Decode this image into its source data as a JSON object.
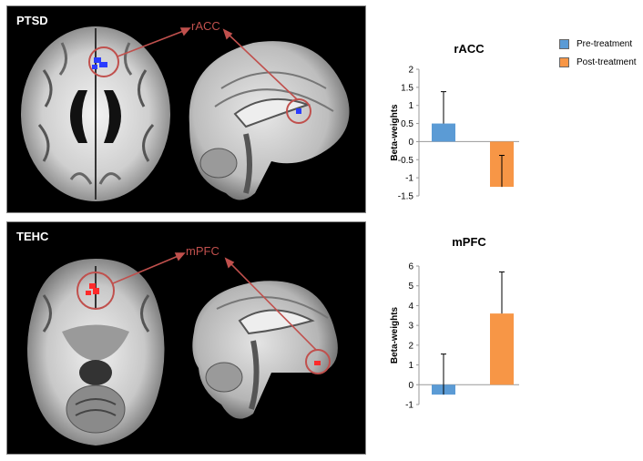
{
  "panels": [
    {
      "label": "PTSD",
      "region": "rACC",
      "marker_color": "#2a3cff"
    },
    {
      "label": "TEHC",
      "region": "mPFC",
      "marker_color": "#ff2a2a"
    }
  ],
  "colors": {
    "pre": "#5b9bd5",
    "post": "#f79646",
    "arrow": "#c0504d"
  },
  "legend": [
    {
      "label": "Pre-treatment",
      "color": "#5b9bd5"
    },
    {
      "label": "Post-treatment",
      "color": "#f79646"
    }
  ],
  "chart_data": [
    {
      "type": "bar",
      "title": "rACC",
      "ylabel": "Beta-weights",
      "categories": [
        "Pre-treatment",
        "Post-treatment"
      ],
      "values": [
        0.5,
        -1.25
      ],
      "error_upper": [
        1.38,
        -0.38
      ],
      "ylim": [
        -1.5,
        2
      ],
      "yticks": [
        "2",
        "1.5",
        "1",
        "0.5",
        "0",
        "-0.5",
        "-1",
        "-1.5"
      ],
      "grid": false
    },
    {
      "type": "bar",
      "title": "mPFC",
      "ylabel": "Beta-weights",
      "categories": [
        "Pre-treatment",
        "Post-treatment"
      ],
      "values": [
        -0.5,
        3.6
      ],
      "error_upper": [
        1.55,
        5.7
      ],
      "ylim": [
        -1,
        6
      ],
      "yticks": [
        "6",
        "5",
        "4",
        "3",
        "2",
        "1",
        "0",
        "-1"
      ],
      "grid": false
    }
  ]
}
